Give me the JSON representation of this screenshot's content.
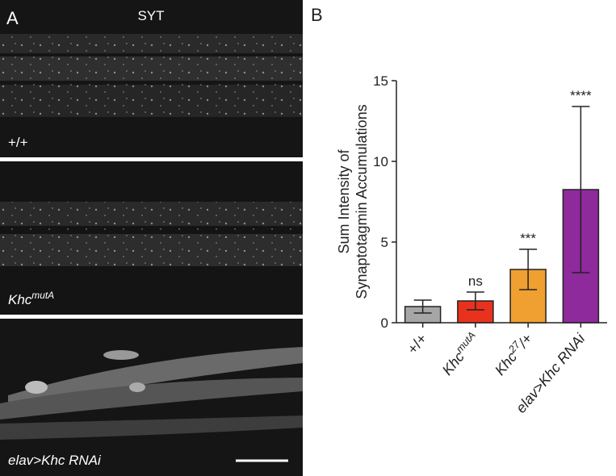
{
  "panels": {
    "a_label": "A",
    "b_label": "B",
    "marker": "SYT",
    "images": [
      [
        "+/+"
      ],
      [
        "Khc",
        "mutA"
      ],
      [
        "elav>Khc RNAi"
      ]
    ]
  },
  "chart_data": {
    "type": "bar",
    "y_label": [
      "Sum Intensity of",
      "Synaptotagmin Accumulations"
    ],
    "categories": [
      [
        "+/+"
      ],
      [
        "Khc",
        "mutA"
      ],
      [
        "Khc",
        "27",
        "/+"
      ],
      [
        "elav>Khc RNAi"
      ]
    ],
    "values": [
      1.0,
      1.35,
      3.3,
      8.25
    ],
    "errors": [
      0.4,
      0.55,
      1.25,
      5.15
    ],
    "colors": [
      "#a6a6a6",
      "#e8321e",
      "#f0a030",
      "#8e2a9c"
    ],
    "annotations": [
      null,
      "ns",
      "***",
      "****"
    ],
    "ylim": [
      0,
      15
    ],
    "yticks": [
      0,
      5,
      10,
      15
    ],
    "grid": false
  }
}
